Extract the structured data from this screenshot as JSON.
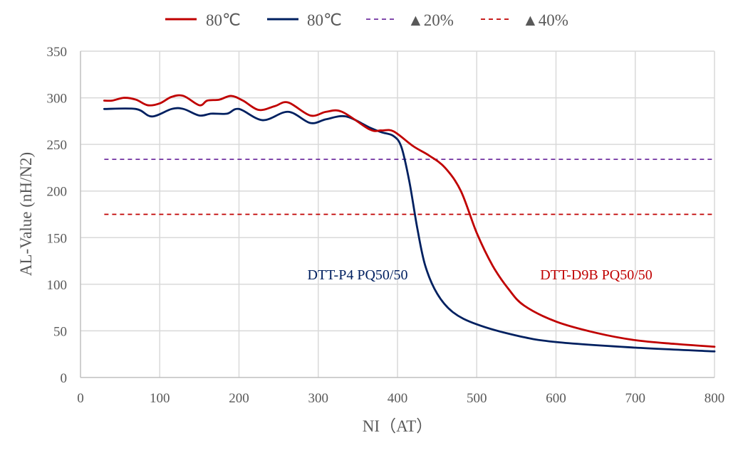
{
  "chart_data": {
    "type": "line",
    "title": "",
    "xlabel": "NI（AT）",
    "ylabel": "AL-Value (nH/N2)",
    "xlim": [
      0,
      800
    ],
    "ylim": [
      0,
      350
    ],
    "xticks": [
      0,
      100,
      200,
      300,
      400,
      500,
      600,
      700,
      800
    ],
    "yticks": [
      0,
      50,
      100,
      150,
      200,
      250,
      300,
      350
    ],
    "grid": true,
    "legend_position": "top",
    "series": [
      {
        "name": "80℃",
        "color": "#C00000",
        "style": "solid",
        "annotation": "DTT-D9B PQ50/50",
        "x": [
          30,
          40,
          55,
          70,
          85,
          100,
          115,
          130,
          150,
          160,
          175,
          190,
          205,
          225,
          245,
          262,
          290,
          310,
          330,
          365,
          380,
          395,
          420,
          440,
          460,
          480,
          500,
          520,
          540,
          560,
          600,
          650,
          700,
          750,
          800
        ],
        "y": [
          297,
          297,
          300,
          298,
          292,
          294,
          301,
          302,
          292,
          297,
          298,
          302,
          297,
          287,
          291,
          295,
          281,
          285,
          285,
          266,
          265,
          264,
          248,
          238,
          225,
          200,
          155,
          120,
          95,
          77,
          60,
          48,
          40,
          36,
          33
        ]
      },
      {
        "name": "80℃",
        "color": "#002060",
        "style": "solid",
        "annotation": "DTT-P4 PQ50/50",
        "x": [
          30,
          70,
          90,
          115,
          130,
          150,
          165,
          185,
          200,
          230,
          262,
          290,
          310,
          335,
          365,
          380,
          395,
          405,
          415,
          425,
          435,
          450,
          470,
          500,
          550,
          600,
          700,
          800
        ],
        "y": [
          288,
          288,
          280,
          288,
          288,
          281,
          283,
          283,
          288,
          276,
          285,
          273,
          277,
          280,
          268,
          263,
          259,
          247,
          210,
          160,
          120,
          90,
          70,
          57,
          45,
          38,
          32,
          28
        ]
      },
      {
        "name": "▲20%",
        "color": "#7030A0",
        "style": "dashed",
        "x": [
          30,
          800
        ],
        "y": [
          234,
          234
        ]
      },
      {
        "name": "▲40%",
        "color": "#C00000",
        "style": "dashed",
        "x": [
          30,
          800
        ],
        "y": [
          175,
          175
        ]
      }
    ],
    "annotations": [
      {
        "text": "DTT-P4 PQ50/50",
        "color": "#002060",
        "x": 425,
        "y": 110
      },
      {
        "text": "DTT-D9B PQ50/50",
        "color": "#C00000",
        "x": 637,
        "y": 110
      }
    ]
  }
}
